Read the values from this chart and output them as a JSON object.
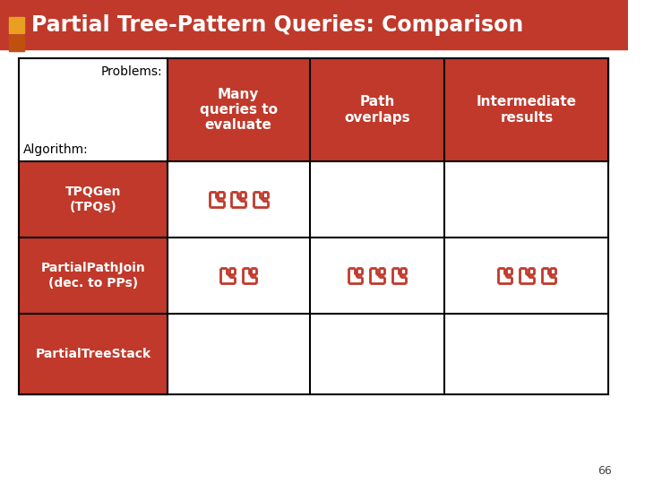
{
  "title": "Partial Tree-Pattern Queries: Comparison",
  "title_bg": "#c0392b",
  "title_color": "#ffffff",
  "header_bg": "#c0392b",
  "header_text_color": "#ffffff",
  "row_label_bg": "#c0392b",
  "row_label_text_color": "#ffffff",
  "cell_bg": "#ffffff",
  "top_left_bg": "#ffffff",
  "top_left_text_color": "#000000",
  "table_border": "#000000",
  "accent_yellow": "#e8a020",
  "accent_orange": "#c05010",
  "page_bg": "#ffffff",
  "col_headers": [
    "Many\nqueries to\nevaluate",
    "Path\noverlaps",
    "Intermediate\nresults"
  ],
  "row_labels": [
    "TPQGen\n(TPQs)",
    "PartialPathJoin\n(dec. to PPs)",
    "PartialTreeStack"
  ],
  "top_left_label1": "Problems:",
  "top_left_label2": "Algorithm:",
  "icon_color": "#c0392b",
  "data": [
    [
      3,
      0,
      0
    ],
    [
      2,
      3,
      3
    ],
    [
      0,
      0,
      0
    ]
  ],
  "page_number": "66"
}
